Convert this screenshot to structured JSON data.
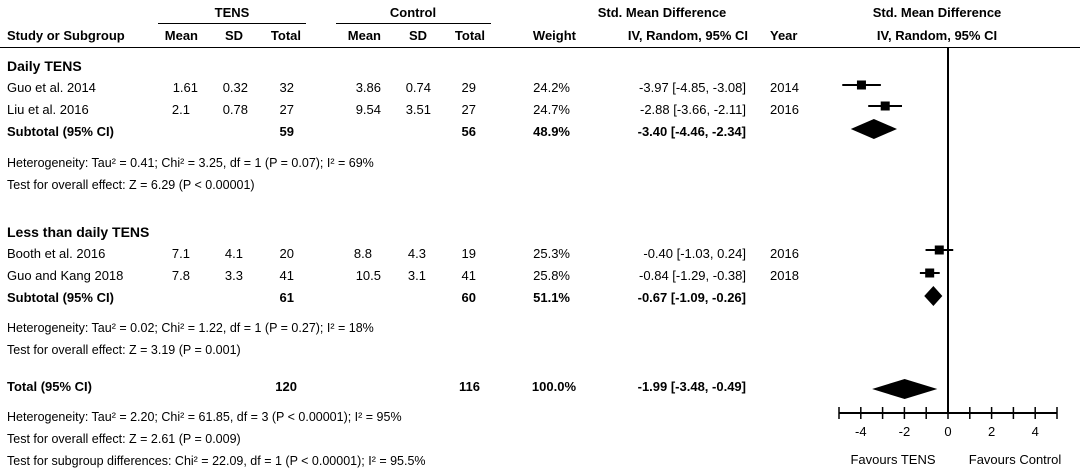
{
  "headers": {
    "group_tens": "TENS",
    "group_control": "Control",
    "group_smd": "Std. Mean Difference",
    "plot_title": "Std. Mean Difference",
    "study": "Study or Subgroup",
    "mean": "Mean",
    "sd": "SD",
    "total": "Total",
    "weight": "Weight",
    "method": "IV, Random, 95% CI",
    "year": "Year",
    "plot_method": "IV, Random, 95% CI"
  },
  "subgroups": [
    {
      "title": "Daily TENS",
      "studies": [
        {
          "name": "Guo et al. 2014",
          "tens_mean": "1.61",
          "tens_sd": "0.32",
          "tens_total": "32",
          "ctrl_mean": "3.86",
          "ctrl_sd": "0.74",
          "ctrl_total": "29",
          "weight": "24.2%",
          "ci": "-3.97 [-4.85, -3.08]",
          "year": "2014"
        },
        {
          "name": "Liu et al. 2016",
          "tens_mean": "2.1",
          "tens_sd": "0.78",
          "tens_total": "27",
          "ctrl_mean": "9.54",
          "ctrl_sd": "3.51",
          "ctrl_total": "27",
          "weight": "24.7%",
          "ci": "-2.88 [-3.66, -2.11]",
          "year": "2016"
        }
      ],
      "subtotal": {
        "label": "Subtotal (95% CI)",
        "tens_total": "59",
        "ctrl_total": "56",
        "weight": "48.9%",
        "ci": "-3.40 [-4.46, -2.34]"
      },
      "heterogeneity": "Heterogeneity: Tau² = 0.41; Chi² = 3.25, df = 1 (P = 0.07); I² = 69%",
      "overall_effect": "Test for overall effect: Z = 6.29 (P < 0.00001)"
    },
    {
      "title": "Less than daily TENS",
      "studies": [
        {
          "name": "Booth et al. 2016",
          "tens_mean": "7.1",
          "tens_sd": "4.1",
          "tens_total": "20",
          "ctrl_mean": "8.8",
          "ctrl_sd": "4.3",
          "ctrl_total": "19",
          "weight": "25.3%",
          "ci": "-0.40 [-1.03, 0.24]",
          "year": "2016"
        },
        {
          "name": "Guo and Kang 2018",
          "tens_mean": "7.8",
          "tens_sd": "3.3",
          "tens_total": "41",
          "ctrl_mean": "10.5",
          "ctrl_sd": "3.1",
          "ctrl_total": "41",
          "weight": "25.8%",
          "ci": "-0.84 [-1.29, -0.38]",
          "year": "2018"
        }
      ],
      "subtotal": {
        "label": "Subtotal (95% CI)",
        "tens_total": "61",
        "ctrl_total": "60",
        "weight": "51.1%",
        "ci": "-0.67 [-1.09, -0.26]"
      },
      "heterogeneity": "Heterogeneity: Tau² = 0.02; Chi² = 1.22, df = 1 (P = 0.27); I² = 18%",
      "overall_effect": "Test for overall effect: Z = 3.19 (P = 0.001)"
    }
  ],
  "total": {
    "label": "Total (95% CI)",
    "tens_total": "120",
    "ctrl_total": "116",
    "weight": "100.0%",
    "ci": "-1.99 [-3.48, -0.49]",
    "heterogeneity": "Heterogeneity: Tau² = 2.20; Chi² = 61.85, df = 3 (P < 0.00001); I² = 95%",
    "overall_effect": "Test for overall effect: Z = 2.61 (P = 0.009)",
    "subgroup_diff": "Test for subgroup differences: Chi² = 22.09, df = 1 (P < 0.00001); I² = 95.5%"
  },
  "axis": {
    "favours_left": "Favours TENS",
    "favours_right": "Favours Control"
  },
  "chart_data": {
    "type": "forest",
    "xlim": [
      -5,
      5
    ],
    "ticks": [
      -4,
      -2,
      0,
      2,
      4
    ],
    "tick_labels": [
      "-4",
      "-2",
      "0",
      "2",
      "4"
    ],
    "null_line": 0,
    "studies": [
      {
        "name": "Guo et al. 2014",
        "est": -3.97,
        "lo": -4.85,
        "hi": -3.08
      },
      {
        "name": "Liu et al. 2016",
        "est": -2.88,
        "lo": -3.66,
        "hi": -2.11
      },
      {
        "name": "Booth et al. 2016",
        "est": -0.4,
        "lo": -1.03,
        "hi": 0.24
      },
      {
        "name": "Guo and Kang 2018",
        "est": -0.84,
        "lo": -1.29,
        "hi": -0.38
      }
    ],
    "pooled": [
      {
        "name": "Subtotal Daily TENS",
        "est": -3.4,
        "lo": -4.46,
        "hi": -2.34
      },
      {
        "name": "Subtotal Less than daily TENS",
        "est": -0.67,
        "lo": -1.09,
        "hi": -0.26
      },
      {
        "name": "Total",
        "est": -1.99,
        "lo": -3.48,
        "hi": -0.49
      }
    ]
  }
}
